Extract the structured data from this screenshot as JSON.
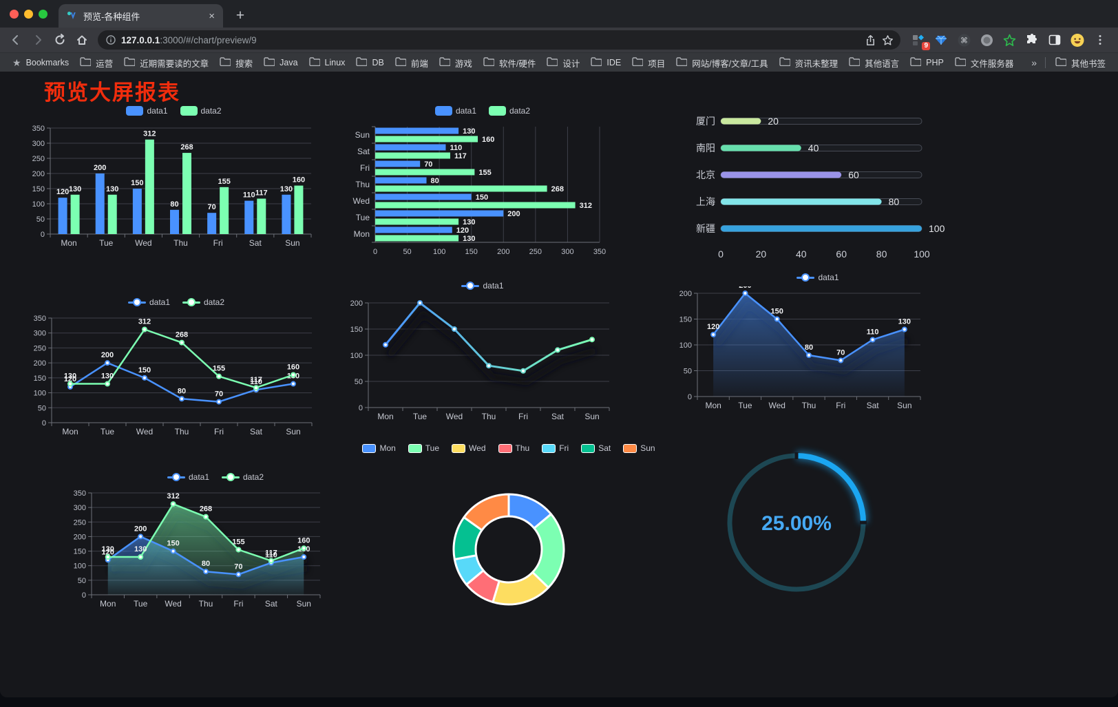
{
  "browser": {
    "tab": {
      "title": "预览-各种组件",
      "close_label": "×",
      "new_tab_label": "+"
    },
    "url": {
      "host": "127.0.0.1",
      "rest": ":3000/#/chart/preview/9"
    },
    "bookmarks_label": "Bookmarks",
    "bookmarks": [
      "运营",
      "近期需要读的文章",
      "搜索",
      "Java",
      "Linux",
      "DB",
      "前端",
      "游戏",
      "软件/硬件",
      "设计",
      "IDE",
      "项目",
      "网站/博客/文章/工具",
      "资讯未整理",
      "其他语言",
      "PHP",
      "文件服务器"
    ],
    "bookmarks_overflow": "»",
    "other_bookmarks": "其他书签",
    "extension_badge": "9"
  },
  "page": {
    "title": "预览大屏报表",
    "title_color": "#f12d0d",
    "background": "#16171b"
  },
  "chart_data": [
    {
      "type": "bar",
      "title": "",
      "legend_position": "top",
      "categories": [
        "Mon",
        "Tue",
        "Wed",
        "Thu",
        "Fri",
        "Sat",
        "Sun"
      ],
      "yticks": [
        0,
        50,
        100,
        150,
        200,
        250,
        300,
        350
      ],
      "ylim": [
        0,
        350
      ],
      "series": [
        {
          "name": "data1",
          "color": "#4992ff",
          "values": [
            120,
            200,
            150,
            80,
            70,
            110,
            130
          ]
        },
        {
          "name": "data2",
          "color": "#7cffb2",
          "values": [
            130,
            130,
            312,
            268,
            155,
            117,
            160
          ]
        }
      ]
    },
    {
      "type": "bar",
      "orientation": "horizontal",
      "legend_position": "top",
      "categories": [
        "Mon",
        "Tue",
        "Wed",
        "Thu",
        "Fri",
        "Sat",
        "Sun"
      ],
      "category_axis_order": "bottom-to-top",
      "xticks": [
        0,
        50,
        100,
        150,
        200,
        250,
        300,
        350
      ],
      "xlim": [
        0,
        350
      ],
      "series": [
        {
          "name": "data1",
          "color": "#4992ff",
          "values": [
            120,
            200,
            150,
            80,
            70,
            110,
            130
          ]
        },
        {
          "name": "data2",
          "color": "#7cffb2",
          "values": [
            130,
            130,
            312,
            268,
            155,
            117,
            160
          ]
        }
      ]
    },
    {
      "type": "bar",
      "subtype": "progress-list",
      "max": 100,
      "xticks": [
        0,
        20,
        40,
        60,
        80,
        100
      ],
      "items": [
        {
          "label": "厦门",
          "value": 20,
          "color": "#c9e89e"
        },
        {
          "label": "南阳",
          "value": 40,
          "color": "#67dfad"
        },
        {
          "label": "北京",
          "value": 60,
          "color": "#9a93e8"
        },
        {
          "label": "上海",
          "value": 80,
          "color": "#82e5e9"
        },
        {
          "label": "新疆",
          "value": 100,
          "color": "#37a2de"
        }
      ]
    },
    {
      "type": "line",
      "legend_position": "top",
      "categories": [
        "Mon",
        "Tue",
        "Wed",
        "Thu",
        "Fri",
        "Sat",
        "Sun"
      ],
      "yticks": [
        0,
        50,
        100,
        150,
        200,
        250,
        300,
        350
      ],
      "ylim": [
        0,
        350
      ],
      "point_labels": true,
      "series": [
        {
          "name": "data1",
          "color": "#4992ff",
          "values": [
            120,
            200,
            150,
            80,
            70,
            110,
            130
          ]
        },
        {
          "name": "data2",
          "color": "#7cffb2",
          "values": [
            130,
            130,
            312,
            268,
            155,
            117,
            160
          ]
        }
      ]
    },
    {
      "type": "line",
      "legend_position": "top",
      "categories": [
        "Mon",
        "Tue",
        "Wed",
        "Thu",
        "Fri",
        "Sat",
        "Sun"
      ],
      "yticks": [
        0,
        50,
        100,
        150,
        200
      ],
      "ylim": [
        0,
        200
      ],
      "point_labels": false,
      "line_style": "gradient-with-shadow",
      "series": [
        {
          "name": "data1",
          "colors": [
            "#4992ff",
            "#7cffb2"
          ],
          "values": [
            120,
            200,
            150,
            80,
            70,
            110,
            130
          ]
        }
      ]
    },
    {
      "type": "area",
      "legend_position": "top",
      "categories": [
        "Mon",
        "Tue",
        "Wed",
        "Thu",
        "Fri",
        "Sat",
        "Sun"
      ],
      "yticks": [
        0,
        50,
        100,
        150,
        200
      ],
      "ylim": [
        0,
        200
      ],
      "point_labels": true,
      "series": [
        {
          "name": "data1",
          "color": "#4992ff",
          "values": [
            120,
            200,
            150,
            80,
            70,
            110,
            130
          ]
        }
      ]
    },
    {
      "type": "area",
      "legend_position": "top",
      "categories": [
        "Mon",
        "Tue",
        "Wed",
        "Thu",
        "Fri",
        "Sat",
        "Sun"
      ],
      "yticks": [
        0,
        50,
        100,
        150,
        200,
        250,
        300,
        350
      ],
      "ylim": [
        0,
        350
      ],
      "point_labels": true,
      "series": [
        {
          "name": "data1",
          "color": "#4992ff",
          "values": [
            120,
            200,
            150,
            80,
            70,
            110,
            130
          ]
        },
        {
          "name": "data2",
          "color": "#7cffb2",
          "values": [
            130,
            130,
            312,
            268,
            155,
            117,
            160
          ]
        }
      ]
    },
    {
      "type": "pie",
      "subtype": "donut",
      "legend_position": "top",
      "categories": [
        "Mon",
        "Tue",
        "Wed",
        "Thu",
        "Fri",
        "Sat",
        "Sun"
      ],
      "values": [
        120,
        200,
        150,
        80,
        70,
        110,
        130
      ],
      "colors": [
        "#4992ff",
        "#7cffb2",
        "#fddd60",
        "#ff6e76",
        "#58d9f9",
        "#05c091",
        "#ff8a45"
      ],
      "border_color": "#ffffff"
    },
    {
      "type": "gauge",
      "subtype": "ring-progress",
      "value": 25,
      "display": "25.00%",
      "color": "#1ba6f1",
      "track_color": "#1d4753",
      "text_color": "#46a9f4"
    }
  ]
}
